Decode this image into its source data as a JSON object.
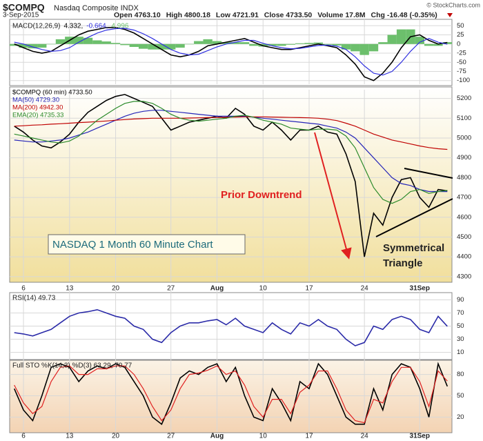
{
  "header": {
    "symbol": "$COMPQ",
    "name": "Nasdaq Composite INDX",
    "date": "3-Sep-2015",
    "copyright": "© StockCharts.com",
    "quote": [
      "Open 4763.10",
      "High 4800.18",
      "Low 4721.91",
      "Close 4733.50",
      "Volume 17.8M",
      "Chg -16.48 (-0.35%)"
    ]
  },
  "chart_data": [
    {
      "type": "line",
      "title": "MACD(12,26,9)",
      "ylim": [
        -110,
        60
      ],
      "yticks": [
        50,
        25,
        0,
        -25,
        -50,
        -75,
        -100
      ],
      "grid": true,
      "series": [
        {
          "name": "4.332,",
          "color": "#000000",
          "values": [
            0,
            -10,
            -20,
            -25,
            -20,
            -5,
            10,
            25,
            35,
            40,
            45,
            45,
            40,
            30,
            15,
            0,
            -15,
            -30,
            -35,
            -30,
            -20,
            -5,
            0,
            5,
            10,
            15,
            5,
            -5,
            -10,
            -15,
            -15,
            -10,
            -5,
            0,
            -5,
            -10,
            -30,
            -55,
            -90,
            -100,
            -80,
            -50,
            -10,
            20,
            25,
            10,
            0,
            4.332
          ]
        },
        {
          "name": "-0.664,",
          "color": "#3030e0",
          "values": [
            5,
            0,
            -8,
            -15,
            -20,
            -18,
            -10,
            5,
            18,
            30,
            38,
            42,
            43,
            38,
            28,
            15,
            0,
            -15,
            -25,
            -30,
            -28,
            -18,
            -8,
            0,
            5,
            10,
            10,
            2,
            -5,
            -10,
            -13,
            -12,
            -8,
            -4,
            -3,
            -6,
            -15,
            -35,
            -60,
            -80,
            -85,
            -75,
            -50,
            -20,
            5,
            15,
            5,
            -0.664
          ]
        },
        {
          "name": "4.996",
          "color": "#6cbf6c",
          "kind": "histogram",
          "values": [
            -5,
            -10,
            -12,
            -10,
            0,
            13,
            20,
            20,
            17,
            10,
            7,
            3,
            -3,
            -8,
            -13,
            -15,
            -15,
            -15,
            -10,
            0,
            8,
            13,
            8,
            5,
            5,
            5,
            -5,
            -7,
            -5,
            -5,
            -2,
            2,
            3,
            4,
            -2,
            -4,
            -15,
            -20,
            -30,
            -20,
            5,
            25,
            40,
            40,
            20,
            -5,
            -5,
            4.996
          ]
        }
      ]
    },
    {
      "type": "line",
      "ylim": [
        4275,
        5230
      ],
      "yticks": [
        4300,
        4400,
        4500,
        4600,
        4700,
        4800,
        4900,
        5000,
        5100,
        5200
      ],
      "grid": true,
      "categories": [
        null,
        "6",
        null,
        null,
        null,
        null,
        "13",
        null,
        null,
        null,
        null,
        "20",
        null,
        null,
        null,
        null,
        null,
        "27",
        null,
        null,
        null,
        null,
        "Aug",
        null,
        null,
        null,
        null,
        "10",
        null,
        null,
        null,
        null,
        "17",
        null,
        null,
        null,
        null,
        null,
        "24",
        null,
        null,
        null,
        null,
        null,
        "31Sep",
        null,
        null,
        null
      ],
      "annotations": [
        "Prior Downtrend",
        "NASDAQ 1 Month 60 Minute Chart",
        "Symmetrical",
        "Triangle"
      ],
      "series": [
        {
          "name": "$COMPQ (60 min) 4733.50",
          "color": "#000000",
          "values": [
            5060,
            5030,
            4990,
            4960,
            4950,
            4980,
            5020,
            5080,
            5130,
            5160,
            5190,
            5210,
            5220,
            5200,
            5180,
            5160,
            5100,
            5040,
            5060,
            5080,
            5090,
            5100,
            5110,
            5100,
            5150,
            5120,
            5060,
            5040,
            5080,
            5040,
            4990,
            5040,
            5040,
            5060,
            5030,
            5020,
            4920,
            4780,
            4400,
            4620,
            4560,
            4700,
            4790,
            4800,
            4700,
            4650,
            4740,
            4733.5
          ]
        },
        {
          "name": "MA(50) 4729.30",
          "color": "#2424b8",
          "values": [
            4990,
            4985,
            4980,
            4980,
            4985,
            4990,
            5000,
            5015,
            5030,
            5050,
            5070,
            5090,
            5110,
            5125,
            5135,
            5140,
            5140,
            5135,
            5130,
            5125,
            5120,
            5115,
            5110,
            5110,
            5110,
            5110,
            5105,
            5100,
            5095,
            5090,
            5085,
            5080,
            5075,
            5070,
            5060,
            5050,
            5030,
            5000,
            4950,
            4900,
            4850,
            4800,
            4770,
            4760,
            4740,
            4730,
            4730,
            4729.3
          ]
        },
        {
          "name": "MA(200) 4942.30",
          "color": "#c00000",
          "values": [
            5060,
            5062,
            5065,
            5067,
            5070,
            5072,
            5075,
            5078,
            5080,
            5083,
            5086,
            5090,
            5093,
            5096,
            5098,
            5100,
            5100,
            5100,
            5100,
            5101,
            5102,
            5103,
            5104,
            5105,
            5106,
            5107,
            5107,
            5107,
            5106,
            5105,
            5104,
            5103,
            5102,
            5100,
            5095,
            5088,
            5075,
            5060,
            5040,
            5020,
            5005,
            4990,
            4980,
            4970,
            4960,
            4952,
            4946,
            4942.3
          ]
        },
        {
          "name": "EMA(20) 4735.33",
          "color": "#2a8a2a",
          "values": [
            5020,
            5010,
            5000,
            4990,
            4980,
            4975,
            4985,
            5010,
            5050,
            5090,
            5120,
            5150,
            5175,
            5185,
            5185,
            5175,
            5150,
            5120,
            5100,
            5090,
            5085,
            5090,
            5095,
            5100,
            5110,
            5115,
            5105,
            5090,
            5080,
            5070,
            5050,
            5045,
            5040,
            5045,
            5045,
            5040,
            5010,
            4950,
            4850,
            4750,
            4690,
            4670,
            4690,
            4730,
            4740,
            4720,
            4730,
            4735.33
          ]
        }
      ]
    },
    {
      "type": "line",
      "title": "RSI(14) 49.73",
      "ylim": [
        0,
        100
      ],
      "yticks": [
        90,
        70,
        50,
        30,
        10
      ],
      "grid": true,
      "series": [
        {
          "name": "RSI(14)",
          "color": "#2a2aa8",
          "values": [
            40,
            38,
            35,
            40,
            45,
            55,
            65,
            70,
            72,
            75,
            70,
            65,
            62,
            50,
            45,
            30,
            25,
            40,
            50,
            55,
            55,
            58,
            60,
            52,
            62,
            50,
            45,
            40,
            55,
            45,
            38,
            55,
            50,
            60,
            50,
            45,
            30,
            20,
            25,
            50,
            45,
            60,
            65,
            60,
            45,
            40,
            65,
            49.73
          ]
        }
      ]
    },
    {
      "type": "line",
      "title": "Full STO %K(14,3) %D(3) 63.29, 70.77",
      "ylim": [
        0,
        100
      ],
      "yticks": [
        80,
        50,
        20
      ],
      "grid": true,
      "categories": [
        null,
        "6",
        null,
        null,
        null,
        null,
        "13",
        null,
        null,
        null,
        null,
        "20",
        null,
        null,
        null,
        null,
        null,
        "27",
        null,
        null,
        null,
        null,
        "Aug",
        null,
        null,
        null,
        null,
        "10",
        null,
        null,
        null,
        null,
        "17",
        null,
        null,
        null,
        null,
        null,
        "24",
        null,
        null,
        null,
        null,
        null,
        "31Sep",
        null,
        null,
        null
      ],
      "series": [
        {
          "name": "%K(14,3)",
          "color": "#000000",
          "values": [
            60,
            30,
            15,
            50,
            90,
            95,
            90,
            70,
            85,
            92,
            88,
            95,
            90,
            70,
            50,
            20,
            10,
            40,
            75,
            85,
            80,
            90,
            95,
            70,
            90,
            50,
            20,
            15,
            60,
            40,
            15,
            70,
            60,
            95,
            80,
            50,
            20,
            10,
            10,
            60,
            30,
            80,
            95,
            90,
            60,
            20,
            95,
            63.29
          ]
        },
        {
          "name": "%D(3)",
          "color": "#e02020",
          "values": [
            65,
            40,
            25,
            35,
            70,
            90,
            92,
            80,
            80,
            88,
            88,
            92,
            92,
            80,
            60,
            35,
            15,
            30,
            60,
            80,
            82,
            86,
            92,
            80,
            85,
            65,
            35,
            20,
            45,
            45,
            25,
            55,
            65,
            85,
            85,
            60,
            30,
            15,
            12,
            45,
            40,
            70,
            90,
            90,
            70,
            35,
            85,
            70.77
          ]
        }
      ]
    }
  ]
}
